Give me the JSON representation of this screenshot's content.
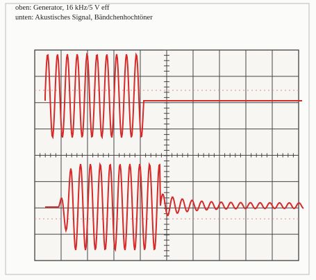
{
  "caption": {
    "line1": "oben: Generator, 16 kHz/5 V eff",
    "line2": "unten: Akustisches Signal, Bändchenhochtöner"
  }
}
